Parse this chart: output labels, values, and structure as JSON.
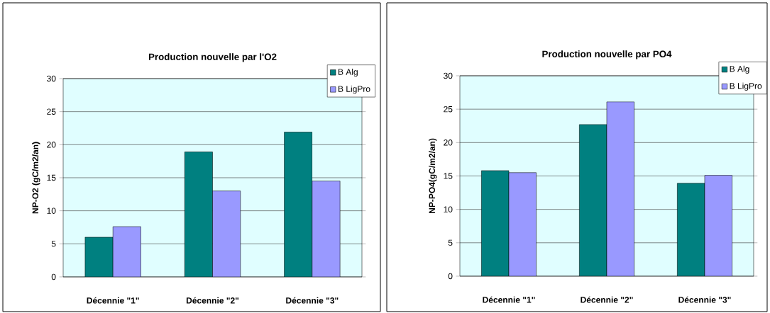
{
  "chart_data": [
    {
      "type": "bar",
      "title": "Production nouvelle par l'O2",
      "ylabel": "NP-O2 (gC/m2/an)",
      "categories": [
        "Décennie \"1\"",
        "Décennie  \"2\"",
        "Décennie  \"3\""
      ],
      "series": [
        {
          "name": "B Alg",
          "color": "#008080",
          "values": [
            6.0,
            18.9,
            21.9
          ]
        },
        {
          "name": "B LigPro",
          "color": "#9999ff",
          "values": [
            7.6,
            13.0,
            14.5
          ]
        }
      ],
      "ylim": [
        0,
        30
      ],
      "yticks": [
        0,
        5,
        10,
        15,
        20,
        25,
        30
      ],
      "grid": "y",
      "legend": "top right"
    },
    {
      "type": "bar",
      "title": "Production nouvelle par PO4",
      "ylabel": "NP-PO4(gC/m2/an)",
      "categories": [
        "Décennie \"1\"",
        "Décennie  \"2\"",
        "Décennie  \"3\""
      ],
      "series": [
        {
          "name": "B Alg",
          "color": "#008080",
          "values": [
            15.8,
            22.7,
            13.9
          ]
        },
        {
          "name": "B LigPro",
          "color": "#9999ff",
          "values": [
            15.5,
            26.1,
            15.1
          ]
        }
      ],
      "ylim": [
        0,
        30
      ],
      "yticks": [
        0,
        5,
        10,
        15,
        20,
        25,
        30
      ],
      "grid": "y",
      "legend": "top right"
    }
  ]
}
